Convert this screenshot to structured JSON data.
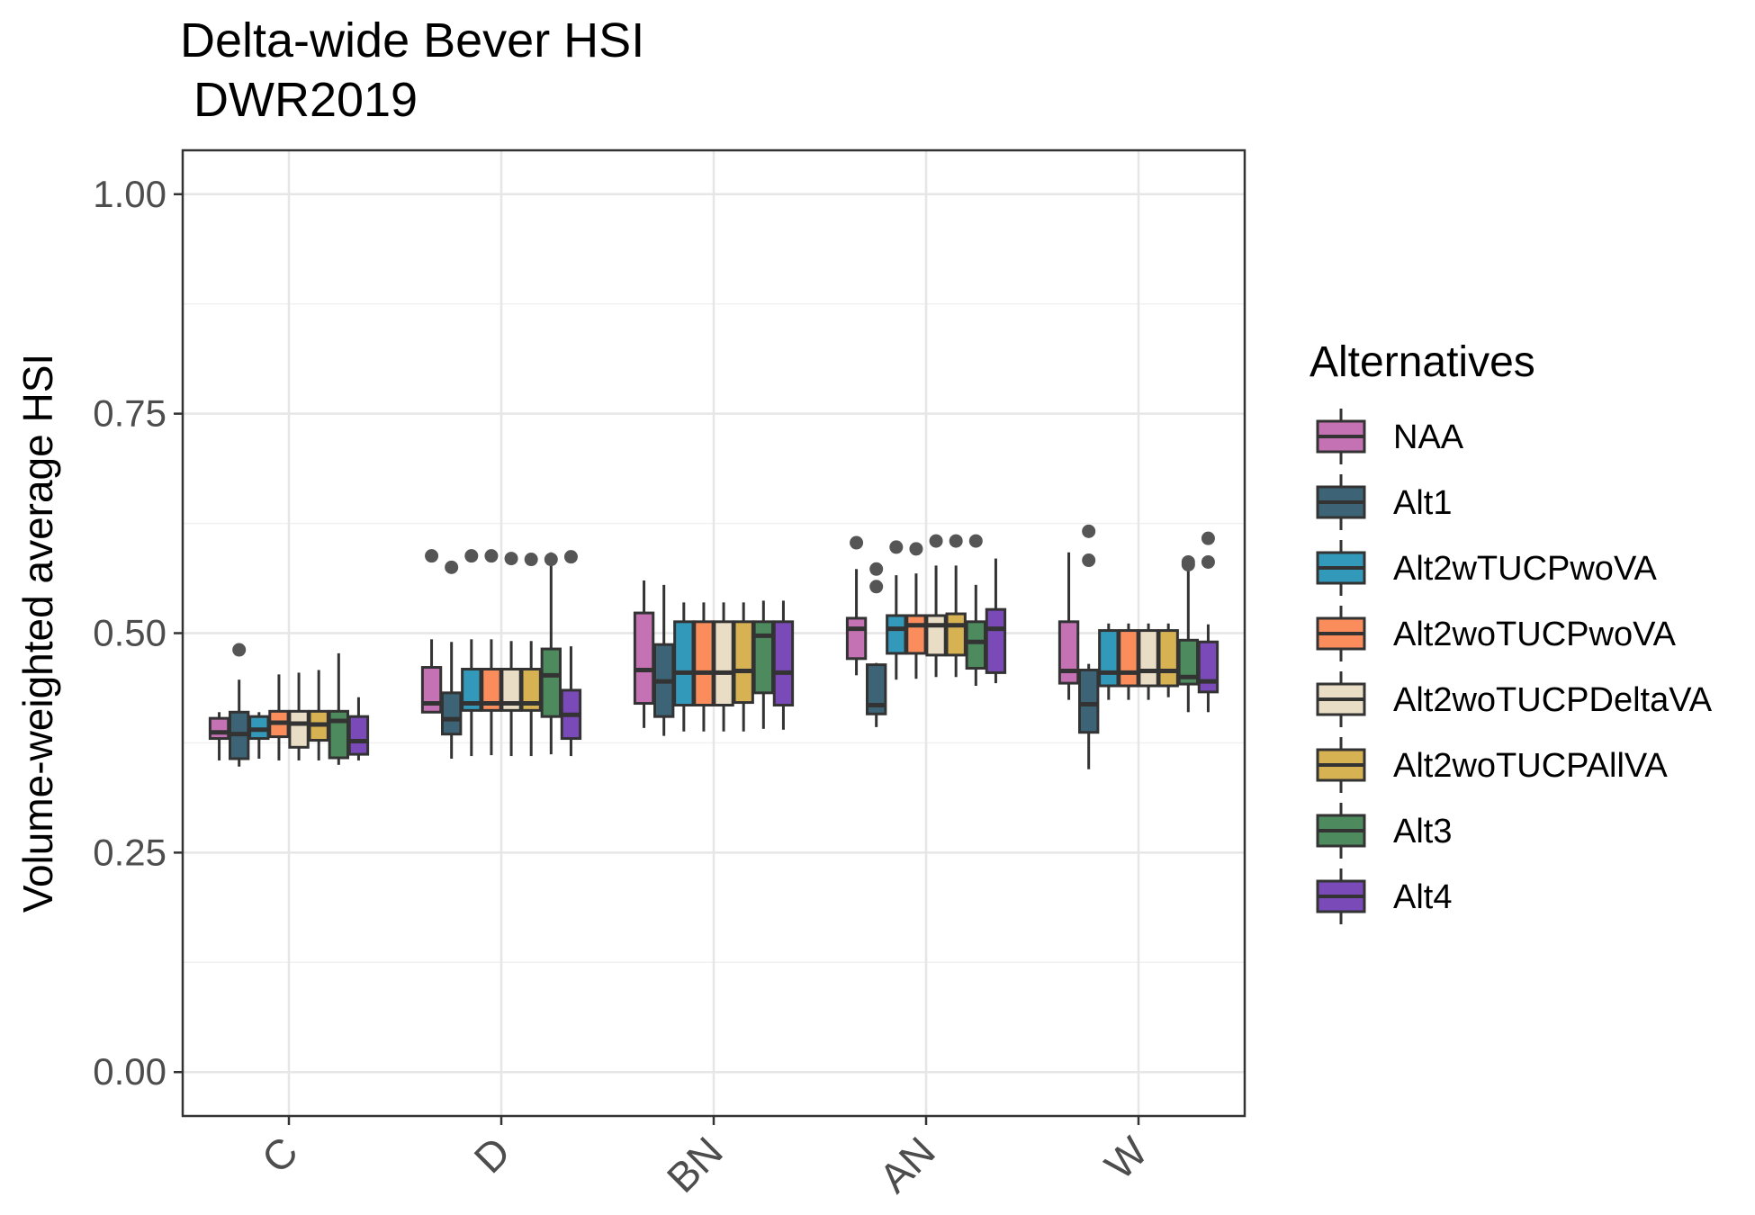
{
  "chart_data": {
    "type": "box",
    "title": "Delta-wide Bever HSI",
    "subtitle": "DWR2019",
    "xlabel": "",
    "ylabel": "Volume-weighted average HSI",
    "ylim": [
      -0.05,
      1.05
    ],
    "y_ticks": [
      "0.00",
      "0.25",
      "0.50",
      "0.75",
      "1.00"
    ],
    "categories": [
      "C",
      "D",
      "BN",
      "AN",
      "W"
    ],
    "grid": true,
    "legend": {
      "title": "Alternatives",
      "position": "right"
    },
    "series": [
      {
        "name": "NAA",
        "color": "#C472B3",
        "boxes": [
          {
            "min": 0.355,
            "q1": 0.38,
            "median": 0.387,
            "q3": 0.403,
            "max": 0.41,
            "outliers": []
          },
          {
            "min": 0.41,
            "q1": 0.41,
            "median": 0.42,
            "q3": 0.461,
            "max": 0.493,
            "outliers": [
              0.588
            ]
          },
          {
            "min": 0.392,
            "q1": 0.42,
            "median": 0.458,
            "q3": 0.523,
            "max": 0.56,
            "outliers": []
          },
          {
            "min": 0.452,
            "q1": 0.471,
            "median": 0.505,
            "q3": 0.517,
            "max": 0.573,
            "outliers": [
              0.603
            ]
          },
          {
            "min": 0.424,
            "q1": 0.443,
            "median": 0.457,
            "q3": 0.513,
            "max": 0.592,
            "outliers": []
          }
        ]
      },
      {
        "name": "Alt1",
        "color": "#3C6476",
        "boxes": [
          {
            "min": 0.348,
            "q1": 0.357,
            "median": 0.385,
            "q3": 0.41,
            "max": 0.447,
            "outliers": [
              0.481
            ]
          },
          {
            "min": 0.357,
            "q1": 0.385,
            "median": 0.402,
            "q3": 0.432,
            "max": 0.49,
            "outliers": [
              0.575
            ]
          },
          {
            "min": 0.383,
            "q1": 0.405,
            "median": 0.445,
            "q3": 0.487,
            "max": 0.555,
            "outliers": []
          },
          {
            "min": 0.393,
            "q1": 0.408,
            "median": 0.418,
            "q3": 0.464,
            "max": 0.466,
            "outliers": [
              0.553,
              0.573
            ]
          },
          {
            "min": 0.345,
            "q1": 0.387,
            "median": 0.419,
            "q3": 0.458,
            "max": 0.465,
            "outliers": [
              0.616,
              0.583
            ]
          }
        ]
      },
      {
        "name": "Alt2wTUCPwoVA",
        "color": "#3399BB",
        "boxes": [
          {
            "min": 0.357,
            "q1": 0.38,
            "median": 0.39,
            "q3": 0.405,
            "max": 0.41,
            "outliers": []
          },
          {
            "min": 0.36,
            "q1": 0.412,
            "median": 0.42,
            "q3": 0.459,
            "max": 0.493,
            "outliers": [
              0.588
            ]
          },
          {
            "min": 0.388,
            "q1": 0.418,
            "median": 0.455,
            "q3": 0.513,
            "max": 0.535,
            "outliers": []
          },
          {
            "min": 0.447,
            "q1": 0.477,
            "median": 0.505,
            "q3": 0.52,
            "max": 0.566,
            "outliers": [
              0.598
            ]
          },
          {
            "min": 0.424,
            "q1": 0.44,
            "median": 0.455,
            "q3": 0.503,
            "max": 0.511,
            "outliers": []
          }
        ]
      },
      {
        "name": "Alt2woTUCPwoVA",
        "color": "#FA8D5B",
        "boxes": [
          {
            "min": 0.355,
            "q1": 0.382,
            "median": 0.398,
            "q3": 0.411,
            "max": 0.453,
            "outliers": []
          },
          {
            "min": 0.361,
            "q1": 0.412,
            "median": 0.42,
            "q3": 0.459,
            "max": 0.493,
            "outliers": [
              0.588
            ]
          },
          {
            "min": 0.388,
            "q1": 0.418,
            "median": 0.455,
            "q3": 0.513,
            "max": 0.535,
            "outliers": []
          },
          {
            "min": 0.448,
            "q1": 0.477,
            "median": 0.509,
            "q3": 0.52,
            "max": 0.568,
            "outliers": [
              0.596
            ]
          },
          {
            "min": 0.424,
            "q1": 0.44,
            "median": 0.455,
            "q3": 0.503,
            "max": 0.511,
            "outliers": []
          }
        ]
      },
      {
        "name": "Alt2woTUCPDeltaVA",
        "color": "#EADDC6",
        "boxes": [
          {
            "min": 0.355,
            "q1": 0.37,
            "median": 0.397,
            "q3": 0.411,
            "max": 0.455,
            "outliers": []
          },
          {
            "min": 0.36,
            "q1": 0.412,
            "median": 0.42,
            "q3": 0.459,
            "max": 0.491,
            "outliers": [
              0.585
            ]
          },
          {
            "min": 0.388,
            "q1": 0.418,
            "median": 0.455,
            "q3": 0.513,
            "max": 0.535,
            "outliers": []
          },
          {
            "min": 0.45,
            "q1": 0.475,
            "median": 0.509,
            "q3": 0.52,
            "max": 0.577,
            "outliers": [
              0.605
            ]
          },
          {
            "min": 0.424,
            "q1": 0.44,
            "median": 0.457,
            "q3": 0.503,
            "max": 0.511,
            "outliers": []
          }
        ]
      },
      {
        "name": "Alt2woTUCPAllVA",
        "color": "#D6B253",
        "boxes": [
          {
            "min": 0.355,
            "q1": 0.378,
            "median": 0.396,
            "q3": 0.411,
            "max": 0.458,
            "outliers": []
          },
          {
            "min": 0.36,
            "q1": 0.412,
            "median": 0.42,
            "q3": 0.459,
            "max": 0.491,
            "outliers": [
              0.584
            ]
          },
          {
            "min": 0.388,
            "q1": 0.421,
            "median": 0.457,
            "q3": 0.513,
            "max": 0.535,
            "outliers": []
          },
          {
            "min": 0.45,
            "q1": 0.475,
            "median": 0.509,
            "q3": 0.522,
            "max": 0.577,
            "outliers": [
              0.605
            ]
          },
          {
            "min": 0.427,
            "q1": 0.44,
            "median": 0.457,
            "q3": 0.503,
            "max": 0.511,
            "outliers": []
          }
        ]
      },
      {
        "name": "Alt3",
        "color": "#4D8B5E",
        "boxes": [
          {
            "min": 0.35,
            "q1": 0.358,
            "median": 0.4,
            "q3": 0.411,
            "max": 0.477,
            "outliers": []
          },
          {
            "min": 0.362,
            "q1": 0.405,
            "median": 0.452,
            "q3": 0.482,
            "max": 0.592,
            "outliers": [
              0.584
            ]
          },
          {
            "min": 0.391,
            "q1": 0.432,
            "median": 0.497,
            "q3": 0.513,
            "max": 0.537,
            "outliers": []
          },
          {
            "min": 0.44,
            "q1": 0.46,
            "median": 0.49,
            "q3": 0.513,
            "max": 0.555,
            "outliers": [
              0.605
            ]
          },
          {
            "min": 0.41,
            "q1": 0.442,
            "median": 0.45,
            "q3": 0.492,
            "max": 0.582,
            "outliers": [
              0.578,
              0.581
            ]
          }
        ]
      },
      {
        "name": "Alt4",
        "color": "#7A4AB8",
        "boxes": [
          {
            "min": 0.355,
            "q1": 0.362,
            "median": 0.377,
            "q3": 0.405,
            "max": 0.427,
            "outliers": []
          },
          {
            "min": 0.36,
            "q1": 0.38,
            "median": 0.407,
            "q3": 0.435,
            "max": 0.485,
            "outliers": [
              0.587
            ]
          },
          {
            "min": 0.39,
            "q1": 0.418,
            "median": 0.455,
            "q3": 0.513,
            "max": 0.537,
            "outliers": []
          },
          {
            "min": 0.443,
            "q1": 0.455,
            "median": 0.505,
            "q3": 0.527,
            "max": 0.585,
            "outliers": []
          },
          {
            "min": 0.41,
            "q1": 0.433,
            "median": 0.445,
            "q3": 0.49,
            "max": 0.51,
            "outliers": [
              0.608,
              0.581
            ]
          }
        ]
      }
    ]
  }
}
